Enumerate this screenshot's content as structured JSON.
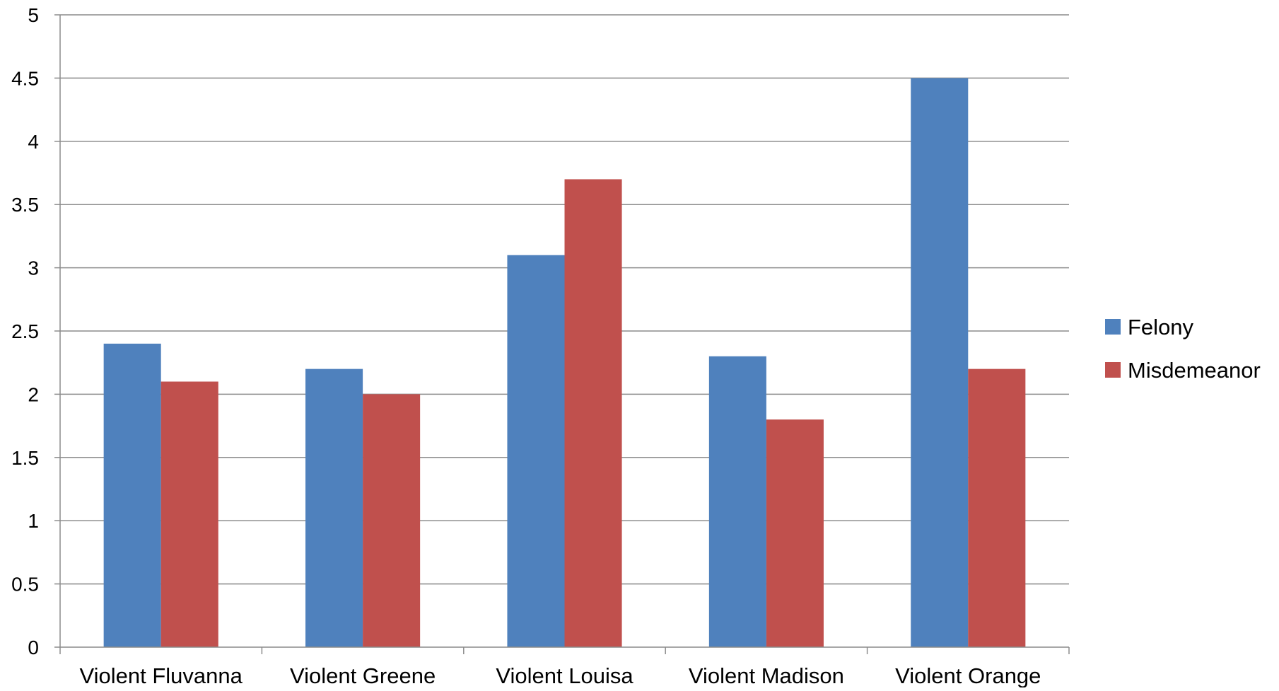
{
  "chart_data": {
    "type": "bar",
    "categories": [
      "Violent Fluvanna",
      "Violent Greene",
      "Violent Louisa",
      "Violent Madison",
      "Violent Orange"
    ],
    "series": [
      {
        "name": "Felony",
        "color": "#4f81bd",
        "values": [
          2.4,
          2.2,
          3.1,
          2.3,
          4.5
        ]
      },
      {
        "name": "Misdemeanor",
        "color": "#c0504d",
        "values": [
          2.1,
          2.0,
          3.7,
          1.8,
          2.2
        ]
      }
    ],
    "title": "",
    "xlabel": "",
    "ylabel": "",
    "ylim": [
      0,
      5
    ],
    "yticks": [
      0,
      0.5,
      1,
      1.5,
      2,
      2.5,
      3,
      3.5,
      4,
      4.5,
      5
    ],
    "ytick_labels": [
      "0",
      "0.5",
      "1",
      "1.5",
      "2",
      "2.5",
      "3",
      "3.5",
      "4",
      "4.5",
      "5"
    ],
    "grid": true,
    "legend_position": "right"
  }
}
